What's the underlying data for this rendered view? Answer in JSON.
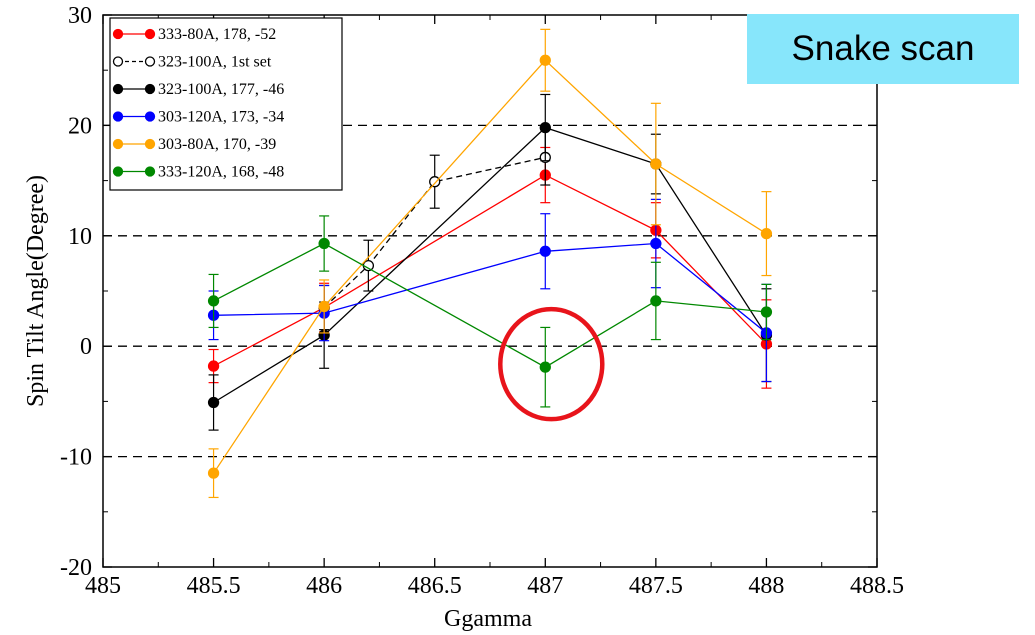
{
  "annotation": {
    "text": "Snake scan",
    "background": "#87e6fb",
    "highlight_circle_color": "#e8141b"
  },
  "chart_data": {
    "type": "line",
    "title": "",
    "xlabel": "Ggamma",
    "ylabel": "Spin Tilt Angle(Degree)",
    "xlim": [
      485,
      488.5
    ],
    "ylim": [
      -20,
      30
    ],
    "x_ticks": [
      "485",
      "485.5",
      "486",
      "486.5",
      "487",
      "487.5",
      "488",
      "488.5"
    ],
    "y_ticks": [
      "-20",
      "-10",
      "0",
      "10",
      "20",
      "30"
    ],
    "reference_lines_y": [
      -10,
      0,
      10,
      20
    ],
    "legend_position": "top-left",
    "series": [
      {
        "name": "333-80A, 178, -52",
        "color": "#ff0000",
        "marker": "filled",
        "line": "solid",
        "points": [
          [
            485.5,
            -1.8
          ],
          [
            486,
            3.5
          ],
          [
            487,
            15.5
          ],
          [
            487.5,
            10.5
          ],
          [
            488,
            0.2
          ]
        ],
        "errors": [
          1.5,
          2.2,
          2.5,
          2.5,
          4.0
        ]
      },
      {
        "name": "323-100A, 1st set",
        "color": "#000000",
        "marker": "open",
        "line": "dashed",
        "points": [
          [
            486,
            3.5
          ],
          [
            486.2,
            7.3
          ],
          [
            486.5,
            14.9
          ],
          [
            487,
            17.1
          ]
        ],
        "errors": [
          2.0,
          2.3,
          2.4,
          2.5
        ]
      },
      {
        "name": "323-100A, 177, -46",
        "color": "#000000",
        "marker": "filled",
        "line": "solid",
        "points": [
          [
            485.5,
            -5.1
          ],
          [
            486,
            1.0
          ],
          [
            487,
            19.8
          ],
          [
            487.5,
            16.5
          ],
          [
            488,
            1.0
          ]
        ],
        "errors": [
          2.5,
          3.0,
          3.0,
          2.7,
          4.2
        ]
      },
      {
        "name": "303-120A, 173, -34",
        "color": "#0000ff",
        "marker": "filled",
        "line": "solid",
        "points": [
          [
            485.5,
            2.8
          ],
          [
            486,
            3.0
          ],
          [
            487,
            8.6
          ],
          [
            487.5,
            9.3
          ],
          [
            488,
            1.2
          ]
        ],
        "errors": [
          2.2,
          2.5,
          3.4,
          4.0,
          4.4
        ]
      },
      {
        "name": "303-80A, 170, -39",
        "color": "#ffa500",
        "marker": "filled",
        "line": "solid",
        "points": [
          [
            485.5,
            -11.5
          ],
          [
            486,
            3.6
          ],
          [
            487,
            25.9
          ],
          [
            487.5,
            16.5
          ],
          [
            488,
            10.2
          ]
        ],
        "errors": [
          2.2,
          2.4,
          2.8,
          5.5,
          3.8
        ]
      },
      {
        "name": "333-120A, 168, -48",
        "color": "#008800",
        "marker": "filled",
        "line": "solid",
        "points": [
          [
            485.5,
            4.1
          ],
          [
            486,
            9.3
          ],
          [
            487,
            -1.9
          ],
          [
            487.5,
            4.1
          ],
          [
            488,
            3.1
          ]
        ],
        "errors": [
          2.4,
          2.5,
          3.6,
          3.5,
          2.5
        ]
      }
    ]
  }
}
